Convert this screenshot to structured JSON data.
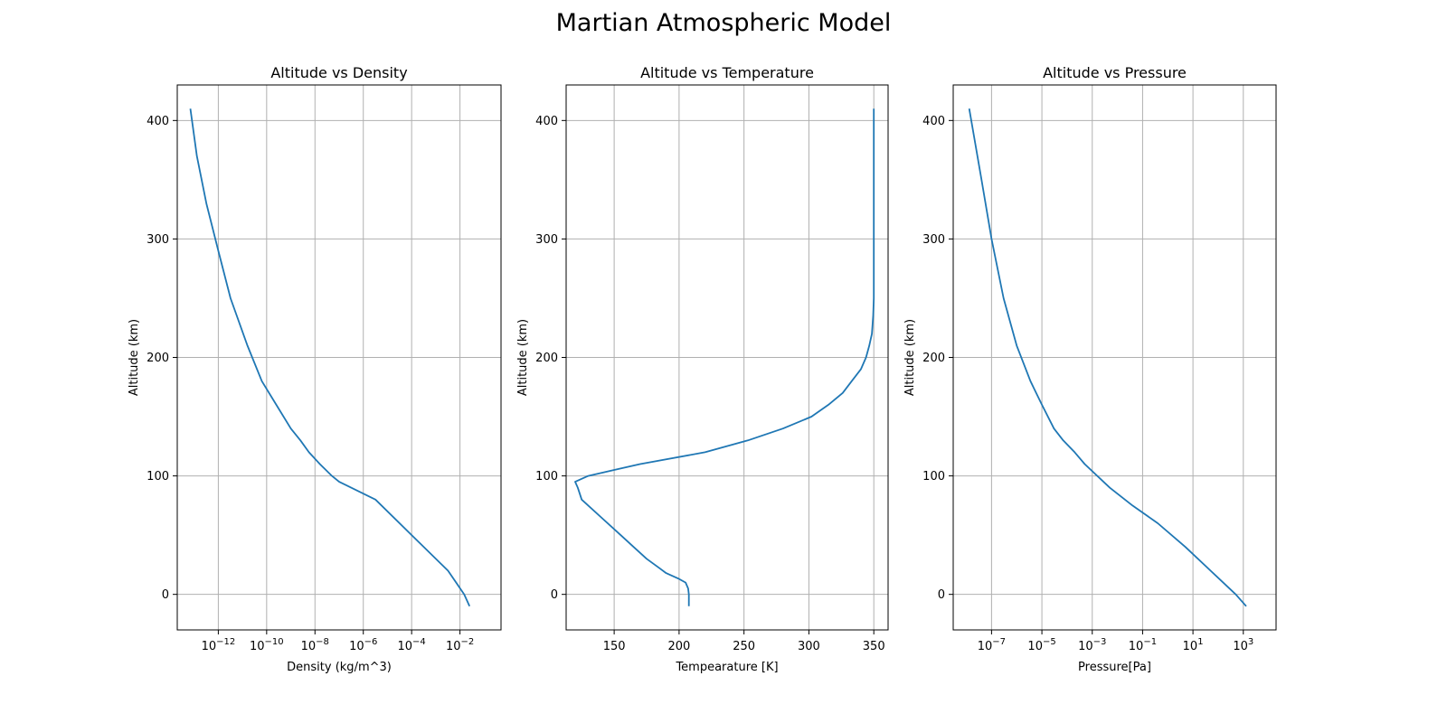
{
  "figure": {
    "title": "Martian Atmospheric Model"
  },
  "style": {
    "line_color": "#1f77b4",
    "grid_color": "#b0b0b0",
    "axes_color": "#000000"
  },
  "chart_data": [
    {
      "type": "line",
      "title": "Altitude vs Density",
      "xlabel": "Density (kg/m^3)",
      "ylabel": "Altitude (km)",
      "xscale": "log",
      "xlim": [
        2e-14,
        0.5
      ],
      "ylim": [
        -30,
        430
      ],
      "grid": true,
      "xticks": [
        {
          "base": "10",
          "exp": "−12",
          "value": 1e-12
        },
        {
          "base": "10",
          "exp": "−10",
          "value": 1e-10
        },
        {
          "base": "10",
          "exp": "−8",
          "value": 1e-08
        },
        {
          "base": "10",
          "exp": "−6",
          "value": 1e-06
        },
        {
          "base": "10",
          "exp": "−4",
          "value": 0.0001
        },
        {
          "base": "10",
          "exp": "−2",
          "value": 0.01
        }
      ],
      "yticks": [
        0,
        100,
        200,
        300,
        400
      ],
      "series": [
        {
          "x": [
            0.025,
            0.015,
            0.0032,
            0.0001,
            3.2e-06,
            1e-07,
            5e-08,
            1.6e-08,
            5.6e-09,
            2.5e-09,
            1e-09,
            2.5e-10,
            6.3e-11,
            1.6e-11,
            3.2e-12,
            1e-12,
            3.2e-13,
            1.3e-13,
            7e-14
          ],
          "y": [
            -10,
            0,
            20,
            50,
            80,
            95,
            100,
            110,
            120,
            130,
            140,
            160,
            180,
            210,
            250,
            290,
            330,
            370,
            410
          ]
        }
      ]
    },
    {
      "type": "line",
      "title": "Altitude vs Temperature",
      "xlabel": "Tempearature [K]",
      "ylabel": "Altitude (km)",
      "xscale": "linear",
      "xlim": [
        113,
        361
      ],
      "ylim": [
        -30,
        430
      ],
      "grid": true,
      "xticks": [
        {
          "label": "150",
          "value": 150
        },
        {
          "label": "200",
          "value": 200
        },
        {
          "label": "250",
          "value": 250
        },
        {
          "label": "300",
          "value": 300
        },
        {
          "label": "350",
          "value": 350
        }
      ],
      "yticks": [
        0,
        100,
        200,
        300,
        400
      ],
      "series": [
        {
          "x": [
            207.5,
            207.5,
            207,
            205,
            200,
            190,
            185,
            175,
            165,
            155,
            140,
            125,
            122,
            120,
            130,
            150,
            170,
            220,
            253,
            280,
            302,
            315,
            326,
            333,
            340,
            344,
            346.5,
            348.5,
            349.5,
            350,
            350,
            350
          ],
          "y": [
            -10,
            0,
            5,
            10,
            13,
            18,
            22,
            30,
            40,
            50,
            65,
            80,
            90,
            95,
            100,
            105,
            110,
            120,
            130,
            140,
            150,
            160,
            170,
            180,
            190,
            200,
            210,
            220,
            235,
            250,
            300,
            410
          ]
        }
      ]
    },
    {
      "type": "line",
      "title": "Altitude vs Pressure",
      "xlabel": "Pressure[Pa]",
      "ylabel": "Altitude (km)",
      "xscale": "log",
      "xlim": [
        3e-09,
        20000
      ],
      "ylim": [
        -30,
        430
      ],
      "grid": true,
      "xticks": [
        {
          "base": "10",
          "exp": "−7",
          "value": 1e-07
        },
        {
          "base": "10",
          "exp": "−5",
          "value": 1e-05
        },
        {
          "base": "10",
          "exp": "−3",
          "value": 0.001
        },
        {
          "base": "10",
          "exp": "−1",
          "value": 0.1
        },
        {
          "base": "10",
          "exp": "1",
          "value": 10
        },
        {
          "base": "10",
          "exp": "3",
          "value": 1000
        }
      ],
      "yticks": [
        0,
        100,
        200,
        300,
        400
      ],
      "series": [
        {
          "x": [
            1300,
            500,
            50,
            5,
            0.4,
            0.04,
            0.005,
            0.0005,
            0.0002,
            7e-05,
            3e-05,
            1e-05,
            3.5e-06,
            1e-06,
            3e-07,
            1e-07,
            4e-08,
            1.3e-08
          ],
          "y": [
            -10,
            0,
            20,
            40,
            60,
            75,
            90,
            110,
            120,
            130,
            140,
            160,
            180,
            210,
            250,
            300,
            350,
            410
          ]
        }
      ]
    }
  ]
}
